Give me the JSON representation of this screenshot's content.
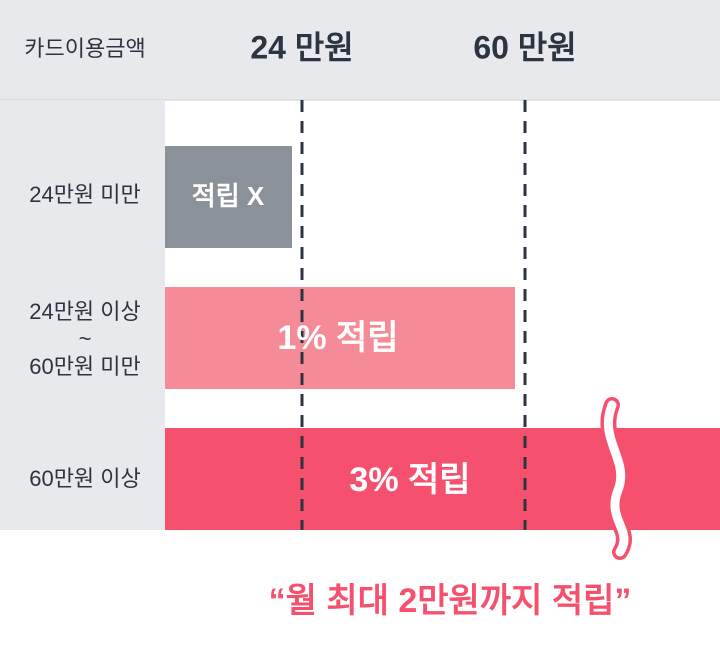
{
  "header": {
    "label": "카드이용금액",
    "columns": [
      "24 만원",
      "60 만원"
    ]
  },
  "rows": [
    {
      "label": [
        "24만원 미만"
      ],
      "bar": "적립 X"
    },
    {
      "label": [
        "24만원 이상",
        "~",
        "60만원 미만"
      ],
      "bar": "1% 적립"
    },
    {
      "label": [
        "60만원 이상"
      ],
      "bar": "3% 적립"
    }
  ],
  "footer": "“월 최대 2만원까지 적립”"
}
